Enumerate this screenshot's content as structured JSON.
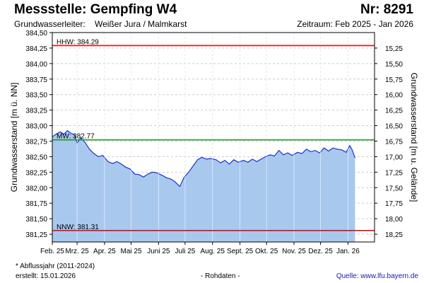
{
  "header": {
    "title": "Messstelle: Gempfing W4",
    "number": "Nr: 8291",
    "aquifer_label": "Grundwasserleiter:",
    "aquifer_value": "Weißer Jura / Malmkarst",
    "period": "Zeitraum: Feb 2025 - Jan 2026"
  },
  "footer": {
    "footnote": "* Abflussjahr (2011-2024)",
    "created": "erstellt:  15.01.2026",
    "rawdata": "- Rohdaten -",
    "source": "Quelle: www.lfu.bayern.de"
  },
  "colors": {
    "fill": "#a9c8ee",
    "line": "#1a2fd6",
    "hhw": "#dd1111",
    "mw": "#229922",
    "nnw": "#dd1111",
    "grid": "#cccccc"
  },
  "chart_data": {
    "type": "area",
    "ylabel_left": "Grundwasserstand [m ü. NN]",
    "ylabel_right": "Grundwasserstand [m u. Gelände]",
    "ylim": [
      381.125,
      384.5
    ],
    "left_ticks": [
      "384,50",
      "384,25",
      "384,00",
      "383,75",
      "383,50",
      "383,25",
      "383,00",
      "382,75",
      "382,50",
      "382,25",
      "382,00",
      "381,75",
      "381,50",
      "381,25"
    ],
    "left_tick_values": [
      384.5,
      384.25,
      384.0,
      383.75,
      383.5,
      383.25,
      383.0,
      382.75,
      382.5,
      382.25,
      382.0,
      381.75,
      381.5,
      381.25
    ],
    "right_ticks": [
      "15,25",
      "15,50",
      "15,75",
      "16,00",
      "16,25",
      "16,50",
      "16,75",
      "17,00",
      "17,25",
      "17,50",
      "17,75",
      "18,00",
      "18,25"
    ],
    "right_tick_values": [
      384.25,
      384.0,
      383.75,
      383.5,
      383.25,
      383.0,
      382.75,
      382.5,
      382.25,
      382.0,
      381.75,
      381.5,
      381.25
    ],
    "x_months": [
      "Feb. 25",
      "Mrz. 25",
      "Apr. 25",
      "Mai 25",
      "Juni 25",
      "Juli 25",
      "Aug. 25",
      "Sept. 25",
      "Okt. 25",
      "Nov. 25",
      "Dez. 25",
      "Jan. 26"
    ],
    "reference_lines": [
      {
        "label": "HHW: 384.29",
        "value": 384.29,
        "color_key": "hhw"
      },
      {
        "label": "MW: 382.77",
        "value": 382.77,
        "color_key": "mw"
      },
      {
        "label": "NNW: 381.31",
        "value": 381.31,
        "color_key": "nnw"
      }
    ],
    "series": [
      {
        "x": [
          "2025-02-01",
          "2025-02-06",
          "2025-02-10",
          "2025-02-14",
          "2025-02-18",
          "2025-02-22",
          "2025-02-26",
          "2025-03-01",
          "2025-03-05",
          "2025-03-10",
          "2025-03-15",
          "2025-03-20",
          "2025-03-25",
          "2025-03-30",
          "2025-04-05",
          "2025-04-10",
          "2025-04-15",
          "2025-04-20",
          "2025-04-25",
          "2025-04-30",
          "2025-05-05",
          "2025-05-10",
          "2025-05-15",
          "2025-05-20",
          "2025-05-25",
          "2025-05-30",
          "2025-06-05",
          "2025-06-10",
          "2025-06-15",
          "2025-06-20",
          "2025-06-25",
          "2025-06-30",
          "2025-07-05",
          "2025-07-10",
          "2025-07-15",
          "2025-07-20",
          "2025-07-25",
          "2025-07-30",
          "2025-08-05",
          "2025-08-10",
          "2025-08-15",
          "2025-08-20",
          "2025-08-25",
          "2025-08-30",
          "2025-09-05",
          "2025-09-10",
          "2025-09-15",
          "2025-09-20",
          "2025-09-25",
          "2025-09-30",
          "2025-10-05",
          "2025-10-10",
          "2025-10-15",
          "2025-10-20",
          "2025-10-25",
          "2025-10-30",
          "2025-11-05",
          "2025-11-10",
          "2025-11-15",
          "2025-11-20",
          "2025-11-25",
          "2025-11-30",
          "2025-12-05",
          "2025-12-10",
          "2025-12-15",
          "2025-12-20",
          "2025-12-25",
          "2025-12-30",
          "2026-01-03",
          "2026-01-06",
          "2026-01-09"
        ],
        "values": [
          382.82,
          382.87,
          382.9,
          382.86,
          382.92,
          382.88,
          382.85,
          382.72,
          382.8,
          382.73,
          382.62,
          382.55,
          382.5,
          382.52,
          382.42,
          382.39,
          382.42,
          382.38,
          382.33,
          382.3,
          382.22,
          382.21,
          382.17,
          382.22,
          382.25,
          382.24,
          382.2,
          382.16,
          382.14,
          382.09,
          382.02,
          382.17,
          382.25,
          382.35,
          382.45,
          382.49,
          382.46,
          382.47,
          382.45,
          382.4,
          382.44,
          382.38,
          382.45,
          382.41,
          382.44,
          382.41,
          382.46,
          382.42,
          382.46,
          382.5,
          382.53,
          382.51,
          382.6,
          382.53,
          382.56,
          382.52,
          382.57,
          382.55,
          382.62,
          382.58,
          382.6,
          382.56,
          382.64,
          382.59,
          382.64,
          382.62,
          382.61,
          382.57,
          382.68,
          382.6,
          382.48
        ]
      }
    ],
    "grid": true
  }
}
